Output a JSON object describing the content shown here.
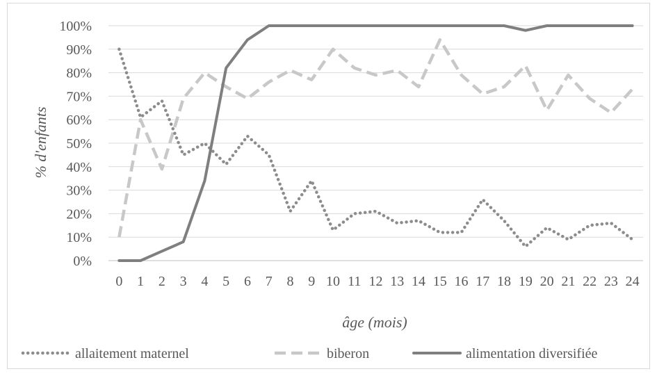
{
  "chart_data": {
    "type": "line",
    "xlabel": "âge (mois)",
    "ylabel": "% d'enfants",
    "x": [
      0,
      1,
      2,
      3,
      4,
      5,
      6,
      7,
      8,
      9,
      10,
      11,
      12,
      13,
      14,
      15,
      16,
      17,
      18,
      19,
      20,
      21,
      22,
      23,
      24
    ],
    "ylim": [
      0,
      100
    ],
    "yticks": [
      "0%",
      "10%",
      "20%",
      "30%",
      "40%",
      "50%",
      "60%",
      "70%",
      "80%",
      "90%",
      "100%"
    ],
    "xticks": [
      "0",
      "1",
      "2",
      "3",
      "4",
      "5",
      "6",
      "7",
      "8",
      "9",
      "10",
      "11",
      "12",
      "13",
      "14",
      "15",
      "16",
      "17",
      "18",
      "19",
      "20",
      "21",
      "22",
      "23",
      "24"
    ],
    "grid": "horizontal",
    "legend_position": "bottom",
    "series": [
      {
        "name": "allaitement maternel",
        "style": "dotted",
        "color": "#8c8c8c",
        "values": [
          90,
          61,
          68,
          45,
          50,
          41,
          53,
          45,
          21,
          34,
          13,
          20,
          21,
          16,
          17,
          12,
          12,
          26,
          17,
          6,
          14,
          9,
          15,
          16,
          9
        ]
      },
      {
        "name": "biberon",
        "style": "dashed",
        "color": "#c8c8c8",
        "values": [
          10,
          60,
          39,
          69,
          80,
          74,
          69,
          76,
          81,
          77,
          90,
          82,
          79,
          81,
          74,
          94,
          79,
          71,
          74,
          83,
          64,
          79,
          69,
          63,
          73
        ]
      },
      {
        "name": "alimentation diversifiée",
        "style": "solid",
        "color": "#7f7f7f",
        "values": [
          0,
          0,
          4,
          8,
          34,
          82,
          94,
          100,
          100,
          100,
          100,
          100,
          100,
          100,
          100,
          100,
          100,
          100,
          100,
          98,
          100,
          100,
          100,
          100,
          100
        ]
      }
    ]
  }
}
